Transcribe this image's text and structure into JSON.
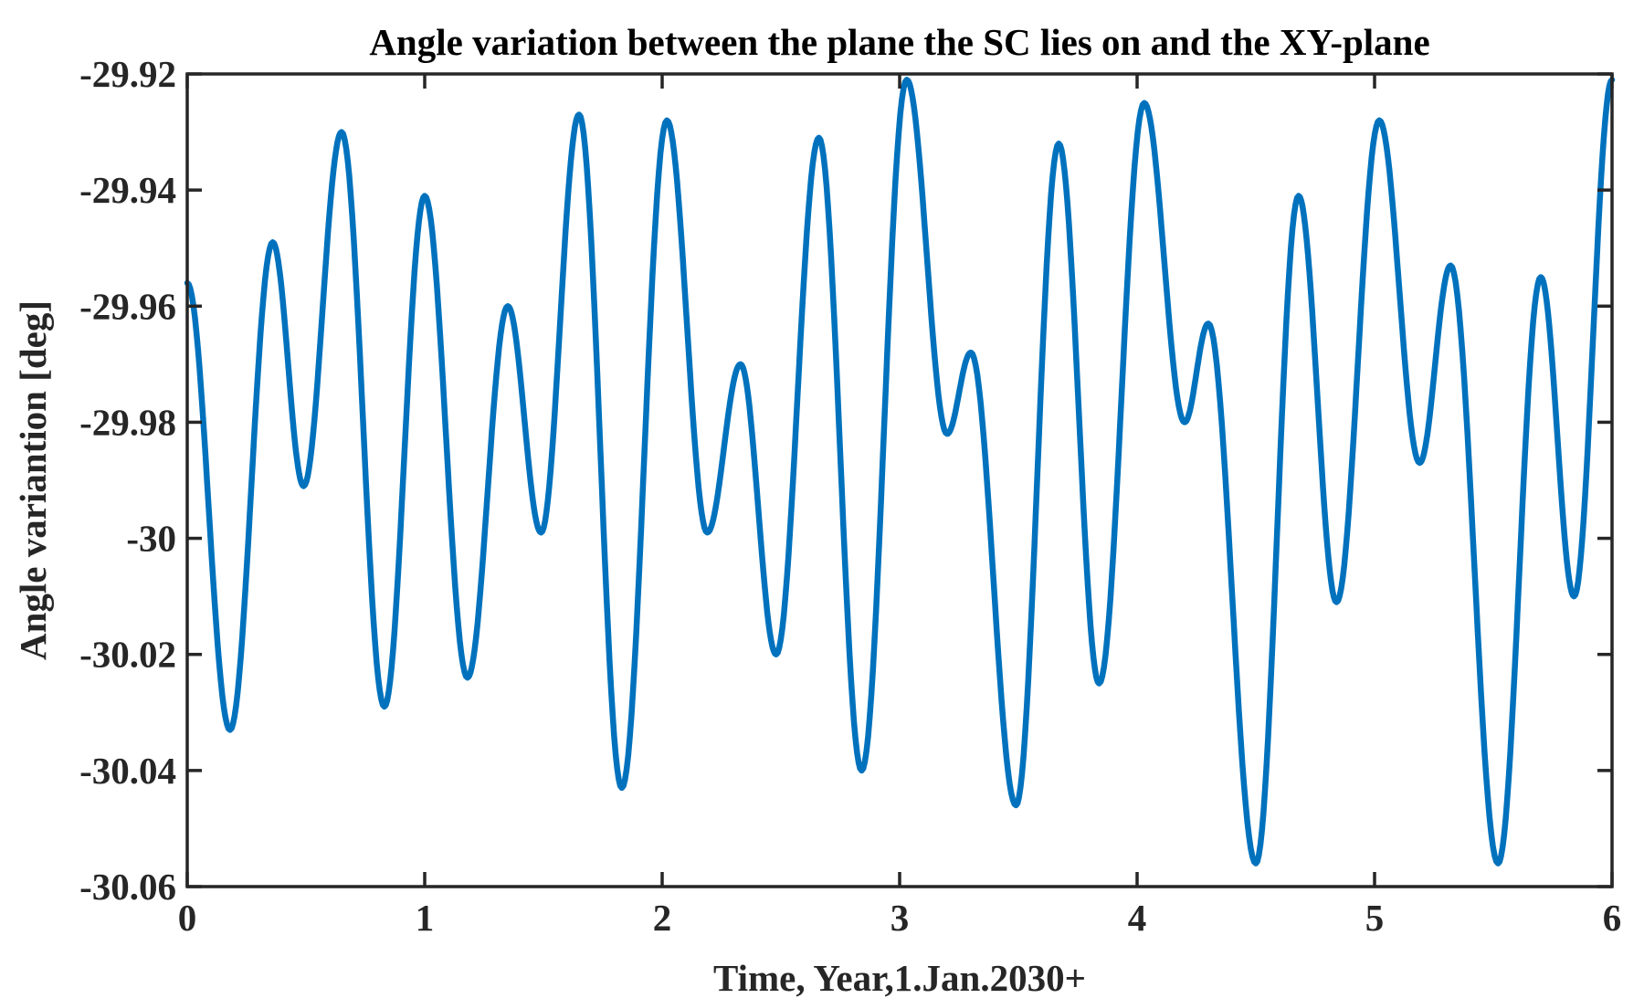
{
  "chart_data": {
    "type": "line",
    "title": "Angle variation between the plane the SC lies on and the XY-plane",
    "xlabel": "Time, Year,1.Jan.2030+",
    "ylabel": "Angle variantion [deg]",
    "xlim": [
      0,
      6
    ],
    "ylim": [
      -30.06,
      -29.92
    ],
    "xticks": [
      0,
      1,
      2,
      3,
      4,
      5,
      6
    ],
    "xtick_labels": [
      "0",
      "1",
      "2",
      "3",
      "4",
      "5",
      "6"
    ],
    "yticks": [
      -29.92,
      -29.94,
      -29.96,
      -29.98,
      -30.0,
      -30.02,
      -30.04,
      -30.06
    ],
    "ytick_labels": [
      "-29.92",
      "-29.94",
      "-29.96",
      "-29.98",
      "-30",
      "-30.02",
      "-30.04",
      "-30.06"
    ],
    "grid": false,
    "line_color": "#0072BD",
    "series": [
      {
        "points": [
          [
            0.0,
            -29.956
          ],
          [
            0.18,
            -30.033
          ],
          [
            0.36,
            -29.949
          ],
          [
            0.49,
            -29.991
          ],
          [
            0.65,
            -29.93
          ],
          [
            0.83,
            -30.029
          ],
          [
            1.0,
            -29.941
          ],
          [
            1.18,
            -30.024
          ],
          [
            1.35,
            -29.96
          ],
          [
            1.49,
            -29.999
          ],
          [
            1.65,
            -29.927
          ],
          [
            1.83,
            -30.043
          ],
          [
            2.02,
            -29.928
          ],
          [
            2.19,
            -29.999
          ],
          [
            2.33,
            -29.97
          ],
          [
            2.48,
            -30.02
          ],
          [
            2.66,
            -29.931
          ],
          [
            2.84,
            -30.04
          ],
          [
            3.03,
            -29.921
          ],
          [
            3.2,
            -29.982
          ],
          [
            3.3,
            -29.968
          ],
          [
            3.49,
            -30.046
          ],
          [
            3.67,
            -29.932
          ],
          [
            3.84,
            -30.025
          ],
          [
            4.03,
            -29.925
          ],
          [
            4.2,
            -29.98
          ],
          [
            4.3,
            -29.963
          ],
          [
            4.5,
            -30.056
          ],
          [
            4.68,
            -29.941
          ],
          [
            4.84,
            -30.011
          ],
          [
            5.02,
            -29.928
          ],
          [
            5.19,
            -29.987
          ],
          [
            5.32,
            -29.953
          ],
          [
            5.52,
            -30.056
          ],
          [
            5.7,
            -29.955
          ],
          [
            5.84,
            -30.01
          ],
          [
            6.0,
            -29.921
          ]
        ]
      }
    ]
  }
}
